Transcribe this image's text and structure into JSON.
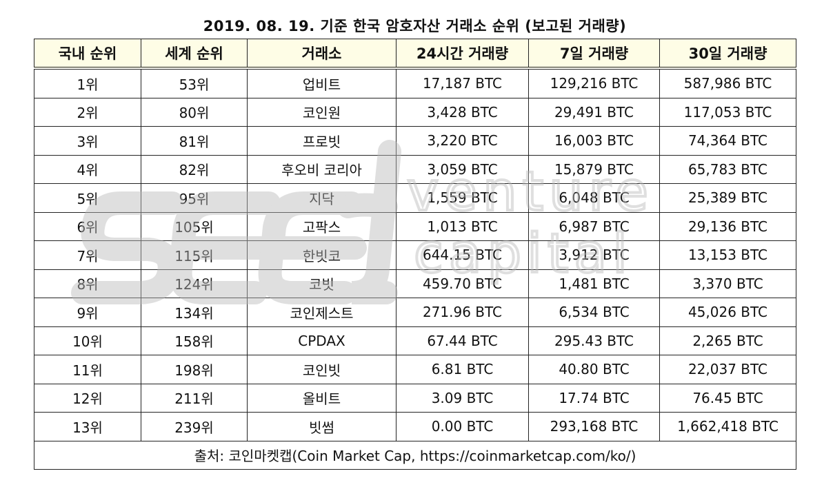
{
  "title": "2019. 08. 19. 기준 한국 암호자산 거래소 순위 (보고된 거래량)",
  "table": {
    "headers": [
      "국내 순위",
      "세계 순위",
      "거래소",
      "24시간 거래량",
      "7일 거래량",
      "30일 거래량"
    ],
    "rows": [
      [
        "1위",
        "53위",
        "업비트",
        "17,187 BTC",
        "129,216 BTC",
        "587,986 BTC"
      ],
      [
        "2위",
        "80위",
        "코인원",
        "3,428 BTC",
        "29,491 BTC",
        "117,053 BTC"
      ],
      [
        "3위",
        "81위",
        "프로빗",
        "3,220 BTC",
        "16,003 BTC",
        "74,364 BTC"
      ],
      [
        "4위",
        "82위",
        "후오비 코리아",
        "3,059 BTC",
        "15,879 BTC",
        "65,783 BTC"
      ],
      [
        "5위",
        "95위",
        "지닥",
        "1,559 BTC",
        "6,048 BTC",
        "25,389 BTC"
      ],
      [
        "6위",
        "105위",
        "고팍스",
        "1,013 BTC",
        "6,987 BTC",
        "29,136 BTC"
      ],
      [
        "7위",
        "115위",
        "한빗코",
        "644.15 BTC",
        "3,912 BTC",
        "13,153 BTC"
      ],
      [
        "8위",
        "124위",
        "코빗",
        "459.70 BTC",
        "1,481 BTC",
        "3,370 BTC"
      ],
      [
        "9위",
        "134위",
        "코인제스트",
        "271.96 BTC",
        "6,534 BTC",
        "45,026 BTC"
      ],
      [
        "10위",
        "158위",
        "CPDAX",
        "67.44 BTC",
        "295.43 BTC",
        "2,265 BTC"
      ],
      [
        "11위",
        "198위",
        "코인빗",
        "6.81 BTC",
        "40.80 BTC",
        "22,037 BTC"
      ],
      [
        "12위",
        "211위",
        "올비트",
        "3.09 BTC",
        "17.74 BTC",
        "76.45 BTC"
      ],
      [
        "13위",
        "239위",
        "빗썸",
        "0.00 BTC",
        "293,168 BTC",
        "1,662,418 BTC"
      ]
    ],
    "footer": "출처: 코인마켓캡(Coin Market Cap, https://coinmarketcap.com/ko/)"
  },
  "watermark": {
    "logo_text": "seed",
    "line1": "venture",
    "line2": "capital",
    "color": "#b9b9b9"
  },
  "colors": {
    "header_bg": "#fefde6",
    "border": "#222222",
    "text": "#111111"
  }
}
